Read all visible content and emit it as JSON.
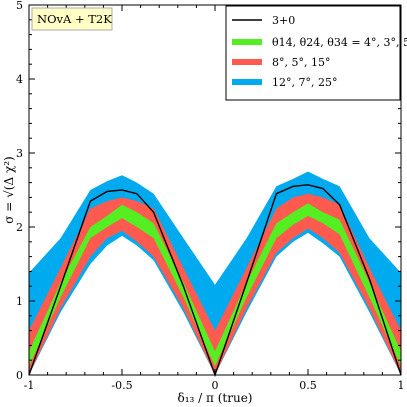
{
  "chart_data": {
    "type": "area",
    "tag": "NOvA + T2K",
    "xlabel": "δ₁₃ / π (true)",
    "ylabel": "σ = √(Δ χ²)",
    "xlim": [
      -1,
      1
    ],
    "ylim": [
      0,
      5
    ],
    "x_ticks": [
      "-1",
      "-0.5",
      "0",
      "0.5",
      "1"
    ],
    "y_ticks": [
      "0",
      "1",
      "2",
      "3",
      "4",
      "5"
    ],
    "grid": false,
    "legend_position": "top-right",
    "x": [
      -1,
      -0.83,
      -0.67,
      -0.58,
      -0.5,
      -0.42,
      -0.33,
      -0.17,
      0,
      0.17,
      0.33,
      0.42,
      0.5,
      0.58,
      0.67,
      0.83,
      1
    ],
    "series": [
      {
        "name": "3+0",
        "color": "#000000",
        "kind": "line",
        "values": [
          0.0,
          1.2,
          2.35,
          2.48,
          2.5,
          2.45,
          2.2,
          1.2,
          0.0,
          1.25,
          2.45,
          2.55,
          2.57,
          2.52,
          2.3,
          1.3,
          0.0
        ]
      },
      {
        "name": "θ14, θ24, θ34 = 4°, 3°, 5°",
        "color": "#55ee22",
        "kind": "band",
        "lower": [
          0.12,
          1.05,
          1.85,
          2.0,
          2.12,
          2.0,
          1.85,
          1.05,
          0.12,
          1.05,
          1.85,
          2.03,
          2.15,
          2.05,
          1.9,
          1.05,
          0.12
        ],
        "upper": [
          0.32,
          1.25,
          2.0,
          2.15,
          2.3,
          2.2,
          2.05,
          1.25,
          0.32,
          1.25,
          2.05,
          2.2,
          2.32,
          2.2,
          2.1,
          1.25,
          0.32
        ]
      },
      {
        "name": "8°, 5°, 15°",
        "color": "#ff5a50",
        "kind": "band",
        "lower": [
          0.0,
          0.9,
          1.6,
          1.85,
          1.95,
          1.8,
          1.6,
          0.9,
          0.0,
          0.9,
          1.65,
          1.85,
          1.98,
          1.85,
          1.65,
          0.9,
          0.0
        ],
        "upper": [
          0.6,
          1.45,
          2.25,
          2.35,
          2.4,
          2.35,
          2.25,
          1.45,
          0.6,
          1.45,
          2.25,
          2.4,
          2.45,
          2.4,
          2.3,
          1.45,
          0.6
        ]
      },
      {
        "name": "12°, 7°, 25°",
        "color": "#00aaee",
        "kind": "band",
        "lower": [
          0.0,
          0.85,
          1.5,
          1.75,
          1.88,
          1.75,
          1.55,
          0.85,
          0.0,
          0.85,
          1.6,
          1.8,
          1.92,
          1.78,
          1.6,
          0.85,
          0.0
        ],
        "upper": [
          1.38,
          1.85,
          2.5,
          2.62,
          2.7,
          2.6,
          2.45,
          1.85,
          1.22,
          1.85,
          2.55,
          2.65,
          2.75,
          2.65,
          2.55,
          1.85,
          1.38
        ]
      }
    ]
  }
}
